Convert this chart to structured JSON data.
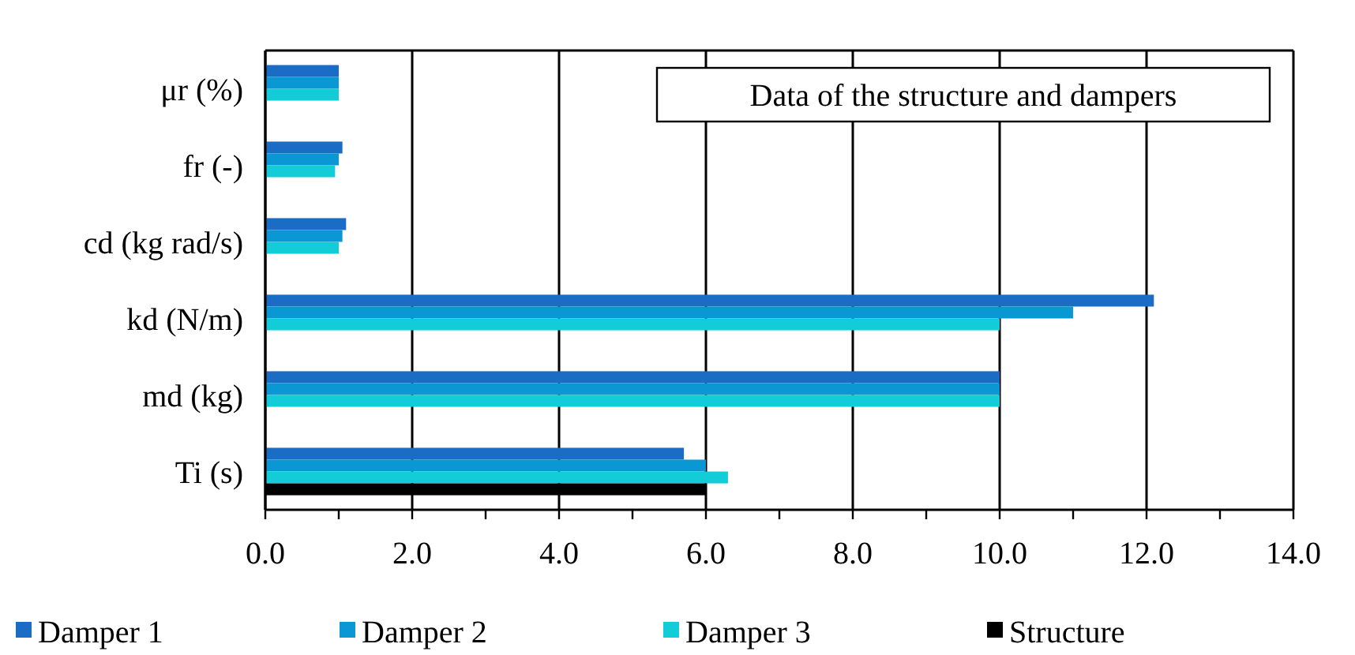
{
  "chart_data": {
    "type": "bar",
    "orientation": "horizontal",
    "title": "Data of the structure and dampers",
    "categories": [
      "μr (%)",
      "fr (-)",
      "cd (kg rad/s)",
      "kd (N/m)",
      "md (kg)",
      "Ti (s)"
    ],
    "series": [
      {
        "name": "Damper 1",
        "color": "#1a6cc4",
        "values": [
          1.0,
          1.05,
          1.1,
          12.1,
          10.0,
          5.7
        ]
      },
      {
        "name": "Damper 2",
        "color": "#0a98d4",
        "values": [
          1.0,
          1.0,
          1.05,
          11.0,
          10.0,
          6.0
        ]
      },
      {
        "name": "Damper 3",
        "color": "#12cdd8",
        "values": [
          1.0,
          0.95,
          1.0,
          10.0,
          10.0,
          6.3
        ]
      },
      {
        "name": "Structure",
        "color": "#000000",
        "values": [
          null,
          null,
          null,
          null,
          null,
          6.0
        ]
      }
    ],
    "xlim": [
      0,
      14
    ],
    "xticks": [
      {
        "value": 0,
        "label": "0.0"
      },
      {
        "value": 1,
        "label": null
      },
      {
        "value": 2,
        "label": "2.0"
      },
      {
        "value": 3,
        "label": null
      },
      {
        "value": 4,
        "label": "4.0"
      },
      {
        "value": 5,
        "label": null
      },
      {
        "value": 6,
        "label": "6.0"
      },
      {
        "value": 7,
        "label": null
      },
      {
        "value": 8,
        "label": "8.0"
      },
      {
        "value": 9,
        "label": null
      },
      {
        "value": 10,
        "label": "10.0"
      },
      {
        "value": 11,
        "label": null
      },
      {
        "value": 12,
        "label": "12.0"
      },
      {
        "value": 13,
        "label": null
      },
      {
        "value": 14,
        "label": "14.0"
      }
    ],
    "grid": "x",
    "legend": "bottom"
  }
}
